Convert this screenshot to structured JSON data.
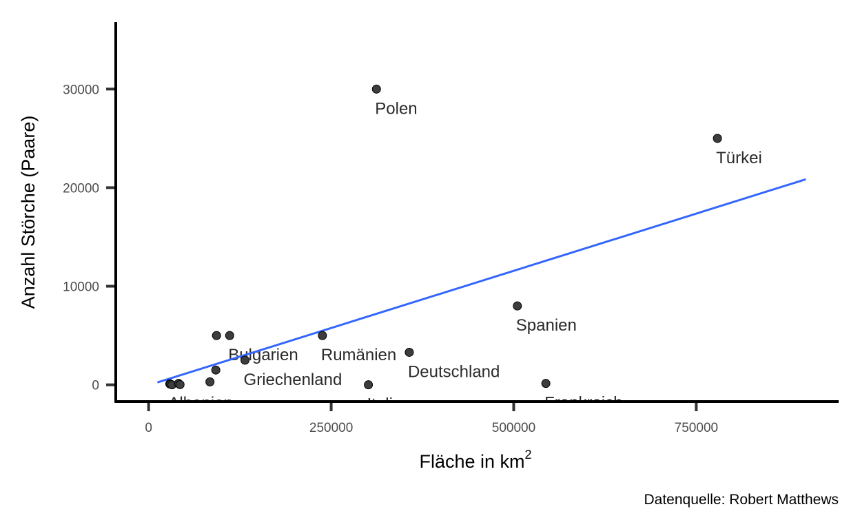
{
  "chart_data": {
    "type": "scatter",
    "xlabel": "Fläche in km",
    "xlabel_superscript": "2",
    "ylabel": "Anzahl Störche (Paare)",
    "caption": "Datenquelle: Robert Matthews",
    "xlim": [
      -45000,
      945000
    ],
    "ylim": [
      -1700,
      36800
    ],
    "x_ticks": [
      0,
      250000,
      500000,
      750000
    ],
    "x_tick_labels": [
      "0",
      "250000",
      "500000",
      "750000"
    ],
    "y_ticks": [
      0,
      10000,
      20000,
      30000
    ],
    "y_tick_labels": [
      "0",
      "10000",
      "20000",
      "30000"
    ],
    "grid": false,
    "point_color": "#3d3d3d",
    "line_color": "#3366ff",
    "points": [
      {
        "label": "Albanien",
        "x": 29000,
        "y": 100
      },
      {
        "label": "",
        "x": 30000,
        "y": 60
      },
      {
        "label": "",
        "x": 32000,
        "y": 0
      },
      {
        "label": "",
        "x": 41000,
        "y": 140
      },
      {
        "label": "",
        "x": 43000,
        "y": 20
      },
      {
        "label": "",
        "x": 84000,
        "y": 300
      },
      {
        "label": "",
        "x": 92000,
        "y": 1500
      },
      {
        "label": "",
        "x": 93000,
        "y": 5000
      },
      {
        "label": "Bulgarien",
        "x": 111000,
        "y": 5000
      },
      {
        "label": "Griechenland",
        "x": 132000,
        "y": 2500
      },
      {
        "label": "Rumänien",
        "x": 238000,
        "y": 5000
      },
      {
        "label": "Italien",
        "x": 301000,
        "y": 0
      },
      {
        "label": "Polen",
        "x": 312000,
        "y": 30000
      },
      {
        "label": "Deutschland",
        "x": 357000,
        "y": 3300
      },
      {
        "label": "Spanien",
        "x": 505000,
        "y": 8000
      },
      {
        "label": "Frankreich",
        "x": 544000,
        "y": 140
      },
      {
        "label": "Türkei",
        "x": 779000,
        "y": 25000
      }
    ],
    "trend_line": {
      "x": [
        12000,
        900000
      ],
      "y": [
        240,
        20850
      ]
    }
  }
}
